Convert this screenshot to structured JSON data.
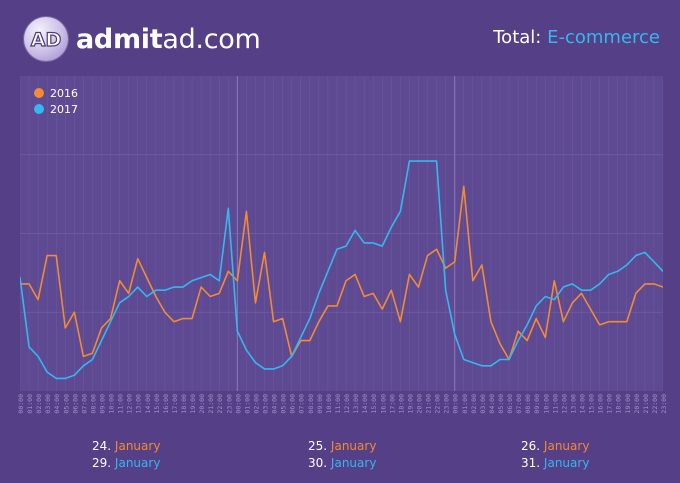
{
  "header": {
    "logo_text_bold": "admit",
    "logo_text_regular": "ad.com",
    "logo_badge_text": "AD",
    "total_label": "Total:",
    "total_value": "E-commerce"
  },
  "colors": {
    "background": "#553f86",
    "panel": "#5e4a92",
    "series_2016": "#f28a36",
    "series_2017": "#35b7ef",
    "grid": "#7a68ac"
  },
  "date_groups": [
    {
      "day_a": "24.",
      "month_a": "January",
      "day_b": "29.",
      "month_b": "January"
    },
    {
      "day_a": "25.",
      "month_a": "January",
      "day_b": "30.",
      "month_b": "January"
    },
    {
      "day_a": "26.",
      "month_a": "January",
      "day_b": "31.",
      "month_b": "January"
    }
  ],
  "chart_data": {
    "type": "line",
    "legend": "top-left",
    "grid": true,
    "x": [
      "00:00",
      "01:00",
      "02:00",
      "03:00",
      "04:00",
      "05:00",
      "06:00",
      "07:00",
      "08:00",
      "09:00",
      "10:00",
      "11:00",
      "12:00",
      "13:00",
      "14:00",
      "15:00",
      "16:00",
      "17:00",
      "18:00",
      "19:00",
      "20:00",
      "21:00",
      "22:00",
      "23:00",
      "00:00",
      "01:00",
      "02:00",
      "03:00",
      "04:00",
      "05:00",
      "06:00",
      "07:00",
      "08:00",
      "09:00",
      "10:00",
      "11:00",
      "12:00",
      "13:00",
      "14:00",
      "15:00",
      "16:00",
      "17:00",
      "18:00",
      "19:00",
      "20:00",
      "21:00",
      "22:00",
      "23:00",
      "00:00",
      "01:00",
      "02:00",
      "03:00",
      "04:00",
      "05:00",
      "06:00",
      "07:00",
      "08:00",
      "09:00",
      "10:00",
      "11:00",
      "12:00",
      "13:00",
      "14:00",
      "15:00",
      "16:00",
      "17:00",
      "18:00",
      "19:00",
      "20:00",
      "21:00",
      "22:00",
      "23:00"
    ],
    "ylim": [
      0,
      100
    ],
    "series": [
      {
        "name": "2016",
        "values": [
          34,
          34,
          29,
          43,
          43,
          20,
          25,
          11,
          12,
          20,
          23,
          35,
          31,
          42,
          36,
          30,
          25,
          22,
          23,
          23,
          33,
          30,
          31,
          38,
          35,
          57,
          28,
          44,
          22,
          23,
          11,
          16,
          16,
          22,
          27,
          27,
          35,
          37,
          30,
          31,
          26,
          32,
          22,
          37,
          33,
          43,
          45,
          39,
          41,
          65,
          35,
          40,
          22,
          15,
          10,
          19,
          16,
          23,
          17,
          35,
          22,
          28,
          31,
          26,
          21,
          22,
          22,
          22,
          31,
          34,
          34,
          33
        ]
      },
      {
        "name": "2017",
        "values": [
          36,
          14,
          11,
          6,
          4,
          4,
          5,
          8,
          10,
          16,
          22,
          28,
          30,
          33,
          30,
          32,
          32,
          33,
          33,
          35,
          36,
          37,
          35,
          58,
          19,
          13,
          9,
          7,
          7,
          8,
          11,
          17,
          23,
          31,
          38,
          45,
          46,
          51,
          47,
          47,
          46,
          52,
          57,
          73,
          73,
          73,
          73,
          32,
          18,
          10,
          9,
          8,
          8,
          10,
          10,
          16,
          21,
          27,
          30,
          29,
          33,
          34,
          32,
          32,
          34,
          37,
          38,
          40,
          43,
          44,
          41,
          38
        ]
      }
    ]
  }
}
